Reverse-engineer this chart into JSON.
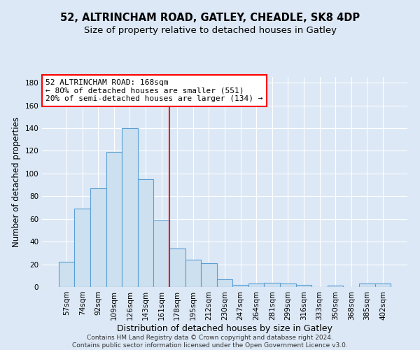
{
  "title1": "52, ALTRINCHAM ROAD, GATLEY, CHEADLE, SK8 4DP",
  "title2": "Size of property relative to detached houses in Gatley",
  "xlabel": "Distribution of detached houses by size in Gatley",
  "ylabel": "Number of detached properties",
  "bar_values": [
    22,
    69,
    87,
    119,
    140,
    95,
    59,
    34,
    24,
    21,
    7,
    2,
    3,
    4,
    3,
    2,
    0,
    1,
    0,
    3,
    3
  ],
  "bar_labels": [
    "57sqm",
    "74sqm",
    "92sqm",
    "109sqm",
    "126sqm",
    "143sqm",
    "161sqm",
    "178sqm",
    "195sqm",
    "212sqm",
    "230sqm",
    "247sqm",
    "264sqm",
    "281sqm",
    "299sqm",
    "316sqm",
    "333sqm",
    "350sqm",
    "368sqm",
    "385sqm",
    "402sqm"
  ],
  "bar_color": "#cde0f0",
  "bar_edgecolor": "#5a9fd4",
  "background_color": "#dce8f5",
  "red_line_x": 6.5,
  "annotation_text": "52 ALTRINCHAM ROAD: 168sqm\n← 80% of detached houses are smaller (551)\n20% of semi-detached houses are larger (134) →",
  "annotation_box_color": "white",
  "annotation_box_edgecolor": "red",
  "ylim": [
    0,
    185
  ],
  "yticks": [
    0,
    20,
    40,
    60,
    80,
    100,
    120,
    140,
    160,
    180
  ],
  "footer": "Contains HM Land Registry data © Crown copyright and database right 2024.\nContains public sector information licensed under the Open Government Licence v3.0.",
  "title1_fontsize": 10.5,
  "title2_fontsize": 9.5,
  "xlabel_fontsize": 9,
  "ylabel_fontsize": 8.5,
  "tick_fontsize": 7.5,
  "annotation_fontsize": 8,
  "footer_fontsize": 6.5
}
